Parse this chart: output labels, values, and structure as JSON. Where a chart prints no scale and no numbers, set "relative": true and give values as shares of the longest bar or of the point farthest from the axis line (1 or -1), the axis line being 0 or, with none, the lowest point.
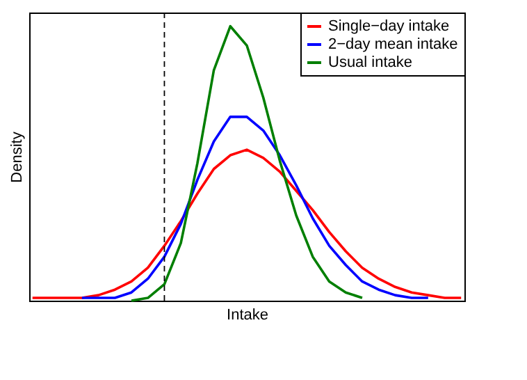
{
  "chart_data": {
    "type": "line",
    "xlabel": "Intake",
    "ylabel": "Density",
    "relative": true,
    "categories": [
      null,
      null,
      null,
      null,
      null,
      null,
      null,
      null,
      null,
      null,
      null,
      null,
      null,
      null,
      null,
      null,
      null,
      null,
      null,
      null,
      null,
      null,
      null,
      null,
      null,
      null,
      null
    ],
    "legend": "top right",
    "series": [
      {
        "name": "Single−day intake",
        "color": "#ff0000",
        "values": [
          0.01,
          0.01,
          0.01,
          0.01,
          0.02,
          0.04,
          0.07,
          0.12,
          0.2,
          0.29,
          0.39,
          0.48,
          0.53,
          0.55,
          0.52,
          0.47,
          0.4,
          0.33,
          0.25,
          0.18,
          0.12,
          0.08,
          0.05,
          0.03,
          0.02,
          0.01,
          0.01
        ]
      },
      {
        "name": "2−day mean intake",
        "color": "#0000ff",
        "values": [
          null,
          null,
          null,
          0.01,
          0.01,
          0.01,
          0.03,
          0.08,
          0.16,
          0.28,
          0.44,
          0.58,
          0.67,
          0.67,
          0.62,
          0.53,
          0.42,
          0.3,
          0.2,
          0.13,
          0.07,
          0.04,
          0.02,
          0.01,
          0.01,
          null,
          null
        ]
      },
      {
        "name": "Usual intake",
        "color": "#007f00",
        "values": [
          null,
          null,
          null,
          null,
          null,
          null,
          0,
          0.01,
          0.06,
          0.21,
          0.5,
          0.84,
          1,
          0.93,
          0.74,
          0.51,
          0.31,
          0.16,
          0.07,
          0.03,
          0.01,
          null,
          null,
          null,
          null,
          null,
          null
        ]
      }
    ]
  }
}
